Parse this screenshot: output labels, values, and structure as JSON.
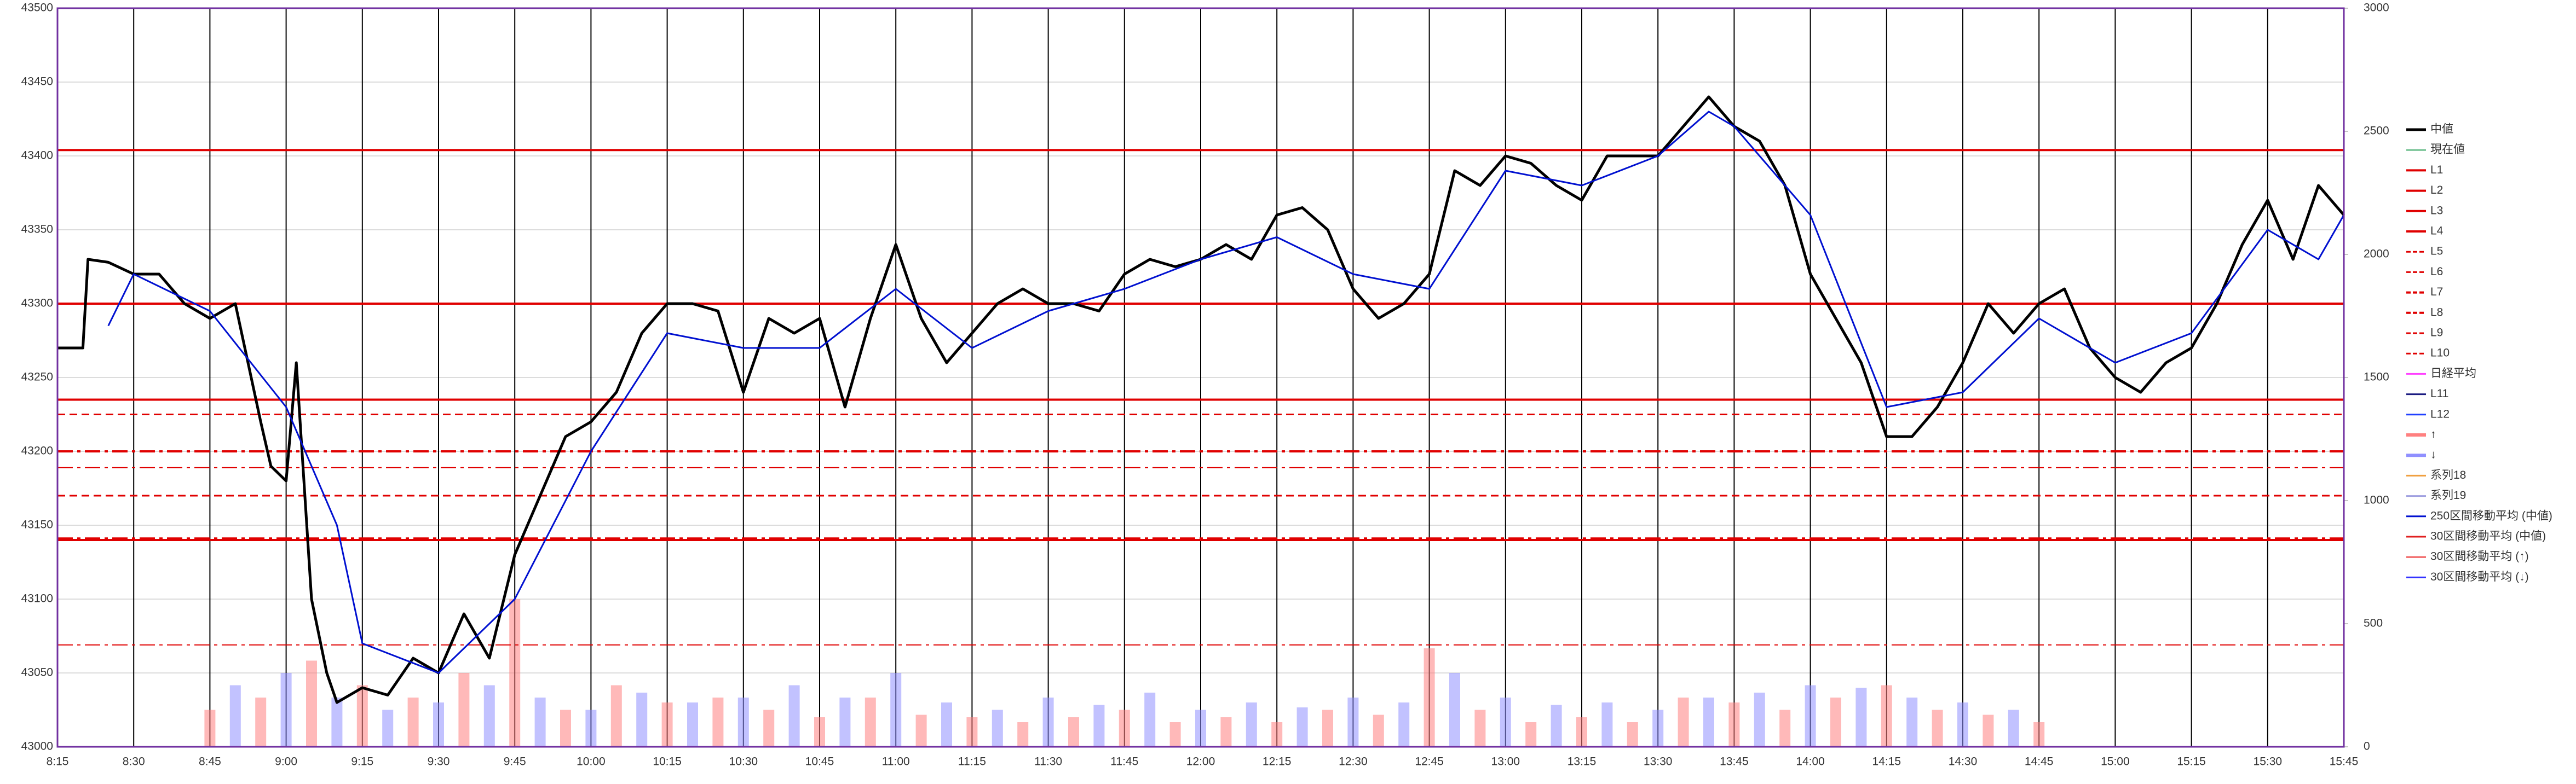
{
  "chart_data": {
    "type": "line",
    "xlim": [
      495,
      945
    ],
    "xticks": [
      {
        "value": 495,
        "label": "8:15"
      },
      {
        "value": 510,
        "label": "8:30"
      },
      {
        "value": 525,
        "label": "8:45"
      },
      {
        "value": 540,
        "label": "9:00"
      },
      {
        "value": 555,
        "label": "9:15"
      },
      {
        "value": 570,
        "label": "9:30"
      },
      {
        "value": 585,
        "label": "9:45"
      },
      {
        "value": 600,
        "label": "10:00"
      },
      {
        "value": 615,
        "label": "10:15"
      },
      {
        "value": 630,
        "label": "10:30"
      },
      {
        "value": 645,
        "label": "10:45"
      },
      {
        "value": 660,
        "label": "11:00"
      },
      {
        "value": 675,
        "label": "11:15"
      },
      {
        "value": 690,
        "label": "11:30"
      },
      {
        "value": 705,
        "label": "11:45"
      },
      {
        "value": 720,
        "label": "12:00"
      },
      {
        "value": 735,
        "label": "12:15"
      },
      {
        "value": 750,
        "label": "12:30"
      },
      {
        "value": 765,
        "label": "12:45"
      },
      {
        "value": 780,
        "label": "13:00"
      },
      {
        "value": 795,
        "label": "13:15"
      },
      {
        "value": 810,
        "label": "13:30"
      },
      {
        "value": 825,
        "label": "13:45"
      },
      {
        "value": 840,
        "label": "14:00"
      },
      {
        "value": 855,
        "label": "14:15"
      },
      {
        "value": 870,
        "label": "14:30"
      },
      {
        "value": 885,
        "label": "14:45"
      },
      {
        "value": 900,
        "label": "15:00"
      },
      {
        "value": 915,
        "label": "15:15"
      },
      {
        "value": 930,
        "label": "15:30"
      },
      {
        "value": 945,
        "label": "15:45"
      }
    ],
    "ylim": [
      43000,
      43500
    ],
    "yticks": [
      43000,
      43050,
      43100,
      43150,
      43200,
      43250,
      43300,
      43350,
      43400,
      43450,
      43500
    ],
    "y2lim": [
      0,
      3000
    ],
    "y2ticks": [
      0,
      500,
      1000,
      1500,
      2000,
      2500,
      3000
    ],
    "grid": true,
    "legend": "right",
    "series": [
      {
        "name": "中値",
        "color": "#000000",
        "width": 5,
        "x": [
          495,
          500,
          501,
          505,
          510,
          515,
          520,
          525,
          530,
          535,
          537,
          540,
          542,
          545,
          548,
          550,
          555,
          560,
          565,
          570,
          575,
          580,
          585,
          590,
          595,
          600,
          605,
          610,
          615,
          620,
          625,
          630,
          635,
          640,
          645,
          650,
          655,
          660,
          665,
          670,
          675,
          680,
          685,
          690,
          695,
          700,
          705,
          710,
          715,
          720,
          725,
          730,
          735,
          740,
          745,
          750,
          755,
          760,
          765,
          770,
          775,
          780,
          785,
          790,
          795,
          800,
          805,
          810,
          815,
          820,
          825,
          830,
          835,
          840,
          845,
          850,
          855,
          860,
          865,
          870,
          875,
          880,
          885,
          890,
          895,
          900,
          905,
          910,
          915,
          920,
          925,
          930,
          935,
          940,
          945
        ],
        "values": [
          43270,
          43270,
          43330,
          43328,
          43320,
          43320,
          43300,
          43290,
          43300,
          43220,
          43190,
          43180,
          43260,
          43100,
          43050,
          43030,
          43040,
          43035,
          43060,
          43050,
          43090,
          43060,
          43130,
          43170,
          43210,
          43220,
          43240,
          43280,
          43300,
          43300,
          43295,
          43240,
          43290,
          43280,
          43290,
          43230,
          43290,
          43340,
          43290,
          43260,
          43280,
          43300,
          43310,
          43300,
          43300,
          43295,
          43320,
          43330,
          43325,
          43330,
          43340,
          43330,
          43360,
          43365,
          43350,
          43310,
          43290,
          43300,
          43320,
          43390,
          43380,
          43400,
          43395,
          43380,
          43370,
          43400,
          43400,
          43400,
          43420,
          43440,
          43420,
          43410,
          43380,
          43320,
          43290,
          43260,
          43210,
          43210,
          43230,
          43260,
          43300,
          43280,
          43300,
          43310,
          43270,
          43250,
          43240,
          43260,
          43270,
          43300,
          43340,
          43370,
          43330,
          43380,
          43360
        ]
      },
      {
        "name": "現在値",
        "color": "#70c090",
        "width": 2
      },
      {
        "name": "L1",
        "color": "#e00000",
        "width": 4,
        "level": 43404
      },
      {
        "name": "L2",
        "color": "#e00000",
        "width": 4,
        "level": 43300
      },
      {
        "name": "L3",
        "color": "#e00000",
        "width": 4,
        "level": 43235
      },
      {
        "name": "L4",
        "color": "#e00000",
        "width": 4,
        "level": 43140
      },
      {
        "name": "L5",
        "color": "#e00000",
        "width": 3,
        "dash": "dashed",
        "level": 43225
      },
      {
        "name": "L6",
        "color": "#e00000",
        "width": 3,
        "dash": "dashed",
        "level": 43170
      },
      {
        "name": "L7",
        "color": "#e00000",
        "width": 4,
        "dash": "dashdot",
        "level": 43200
      },
      {
        "name": "L8",
        "color": "#e00000",
        "width": 4,
        "dash": "dashdot",
        "level": 43141
      },
      {
        "name": "L9",
        "color": "#e00000",
        "width": 2,
        "dash": "dashdot",
        "level": 43189
      },
      {
        "name": "L10",
        "color": "#e00000",
        "width": 2,
        "dash": "dashdot",
        "level": 43069
      },
      {
        "name": "日経平均",
        "color": "#ff40ff",
        "width": 2
      },
      {
        "name": "L11",
        "color": "#1a1a80",
        "width": 3
      },
      {
        "name": "L12",
        "color": "#2040ff",
        "width": 3
      },
      {
        "name": "↑",
        "color": "#ff8080",
        "axis": "y2",
        "bar": true,
        "x": [
          525,
          535,
          545,
          555,
          565,
          575,
          585,
          595,
          605,
          615,
          625,
          635,
          645,
          655,
          665,
          675,
          685,
          695,
          705,
          715,
          725,
          735,
          745,
          755,
          765,
          775,
          785,
          795,
          805,
          815,
          825,
          835,
          845,
          855,
          865,
          875,
          885
        ],
        "values": [
          150,
          200,
          350,
          250,
          200,
          300,
          600,
          150,
          250,
          180,
          200,
          150,
          120,
          200,
          130,
          120,
          100,
          120,
          150,
          100,
          120,
          100,
          150,
          130,
          400,
          150,
          100,
          120,
          100,
          200,
          180,
          150,
          200,
          250,
          150,
          130,
          100
        ]
      },
      {
        "name": "↓",
        "color": "#9090ff",
        "axis": "y2",
        "bar": true,
        "x": [
          530,
          540,
          550,
          560,
          570,
          580,
          590,
          600,
          610,
          620,
          630,
          640,
          650,
          660,
          670,
          680,
          690,
          700,
          710,
          720,
          730,
          740,
          750,
          760,
          770,
          780,
          790,
          800,
          810,
          820,
          830,
          840,
          850,
          860,
          870,
          880
        ],
        "values": [
          250,
          300,
          200,
          150,
          180,
          250,
          200,
          150,
          220,
          180,
          200,
          250,
          200,
          300,
          180,
          150,
          200,
          170,
          220,
          150,
          180,
          160,
          200,
          180,
          300,
          200,
          170,
          180,
          150,
          200,
          220,
          250,
          240,
          200,
          180,
          150
        ]
      },
      {
        "name": "系列18",
        "color": "#f0a040",
        "width": 2
      },
      {
        "name": "系列19",
        "color": "#a0a0e0",
        "width": 2
      },
      {
        "name": "250区間移動平均 (中値)",
        "color": "#0010d0",
        "width": 3,
        "x": [
          505,
          510,
          525,
          540,
          550,
          555,
          570,
          585,
          600,
          615,
          630,
          645,
          660,
          675,
          690,
          705,
          720,
          735,
          750,
          765,
          780,
          795,
          810,
          820,
          825,
          840,
          855,
          870,
          885,
          900,
          915,
          930,
          940,
          945
        ],
        "values": [
          43285,
          43320,
          43295,
          43230,
          43150,
          43070,
          43050,
          43100,
          43200,
          43280,
          43270,
          43270,
          43310,
          43270,
          43295,
          43310,
          43330,
          43345,
          43320,
          43310,
          43390,
          43380,
          43400,
          43430,
          43420,
          43360,
          43230,
          43240,
          43290,
          43260,
          43280,
          43350,
          43330,
          43360
        ]
      },
      {
        "name": "30区間移動平均 (中値)",
        "color": "#e02020",
        "width": 2
      },
      {
        "name": "30区間移動平均 (↑)",
        "color": "#f06060",
        "width": 2
      },
      {
        "name": "30区間移動平均 (↓)",
        "color": "#3030ff",
        "width": 2
      }
    ]
  }
}
